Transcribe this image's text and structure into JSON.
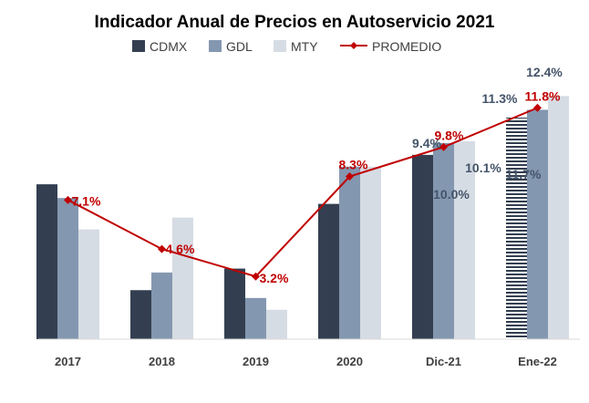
{
  "chart_data": {
    "type": "bar",
    "title": "Indicador Anual de Precios en Autoservicio 2021",
    "categories": [
      "2017",
      "2018",
      "2019",
      "2020",
      "Dic-21",
      "Ene-22"
    ],
    "series": [
      {
        "name": "CDMX",
        "kind": "bar",
        "color": "#333f50",
        "values": [
          7.9,
          2.5,
          3.6,
          6.9,
          9.4,
          11.3
        ]
      },
      {
        "name": "GDL",
        "kind": "bar",
        "color": "#8497b0",
        "values": [
          7.2,
          3.4,
          2.1,
          8.8,
          10.0,
          11.7
        ]
      },
      {
        "name": "MTY",
        "kind": "bar",
        "color": "#d6dce4",
        "values": [
          5.6,
          6.2,
          1.5,
          8.8,
          10.1,
          12.4
        ]
      },
      {
        "name": "PROMEDIO",
        "kind": "line",
        "color": "#c00000",
        "values": [
          7.1,
          4.6,
          3.2,
          8.3,
          9.8,
          11.8
        ]
      }
    ],
    "labels": {
      "PROMEDIO": [
        "7.1%",
        "4.6%",
        "3.2%",
        "8.3%",
        "9.8%",
        "11.8%"
      ],
      "CDMX": [
        "",
        "",
        "",
        "",
        "9.4%",
        "11.3%"
      ],
      "GDL": [
        "",
        "",
        "",
        "",
        "10.0%",
        "11.7%"
      ],
      "MTY": [
        "",
        "",
        "",
        "",
        "10.1%",
        "12.4%"
      ]
    },
    "ylim": [
      0,
      13.3
    ],
    "grid": false,
    "legend": "top"
  }
}
